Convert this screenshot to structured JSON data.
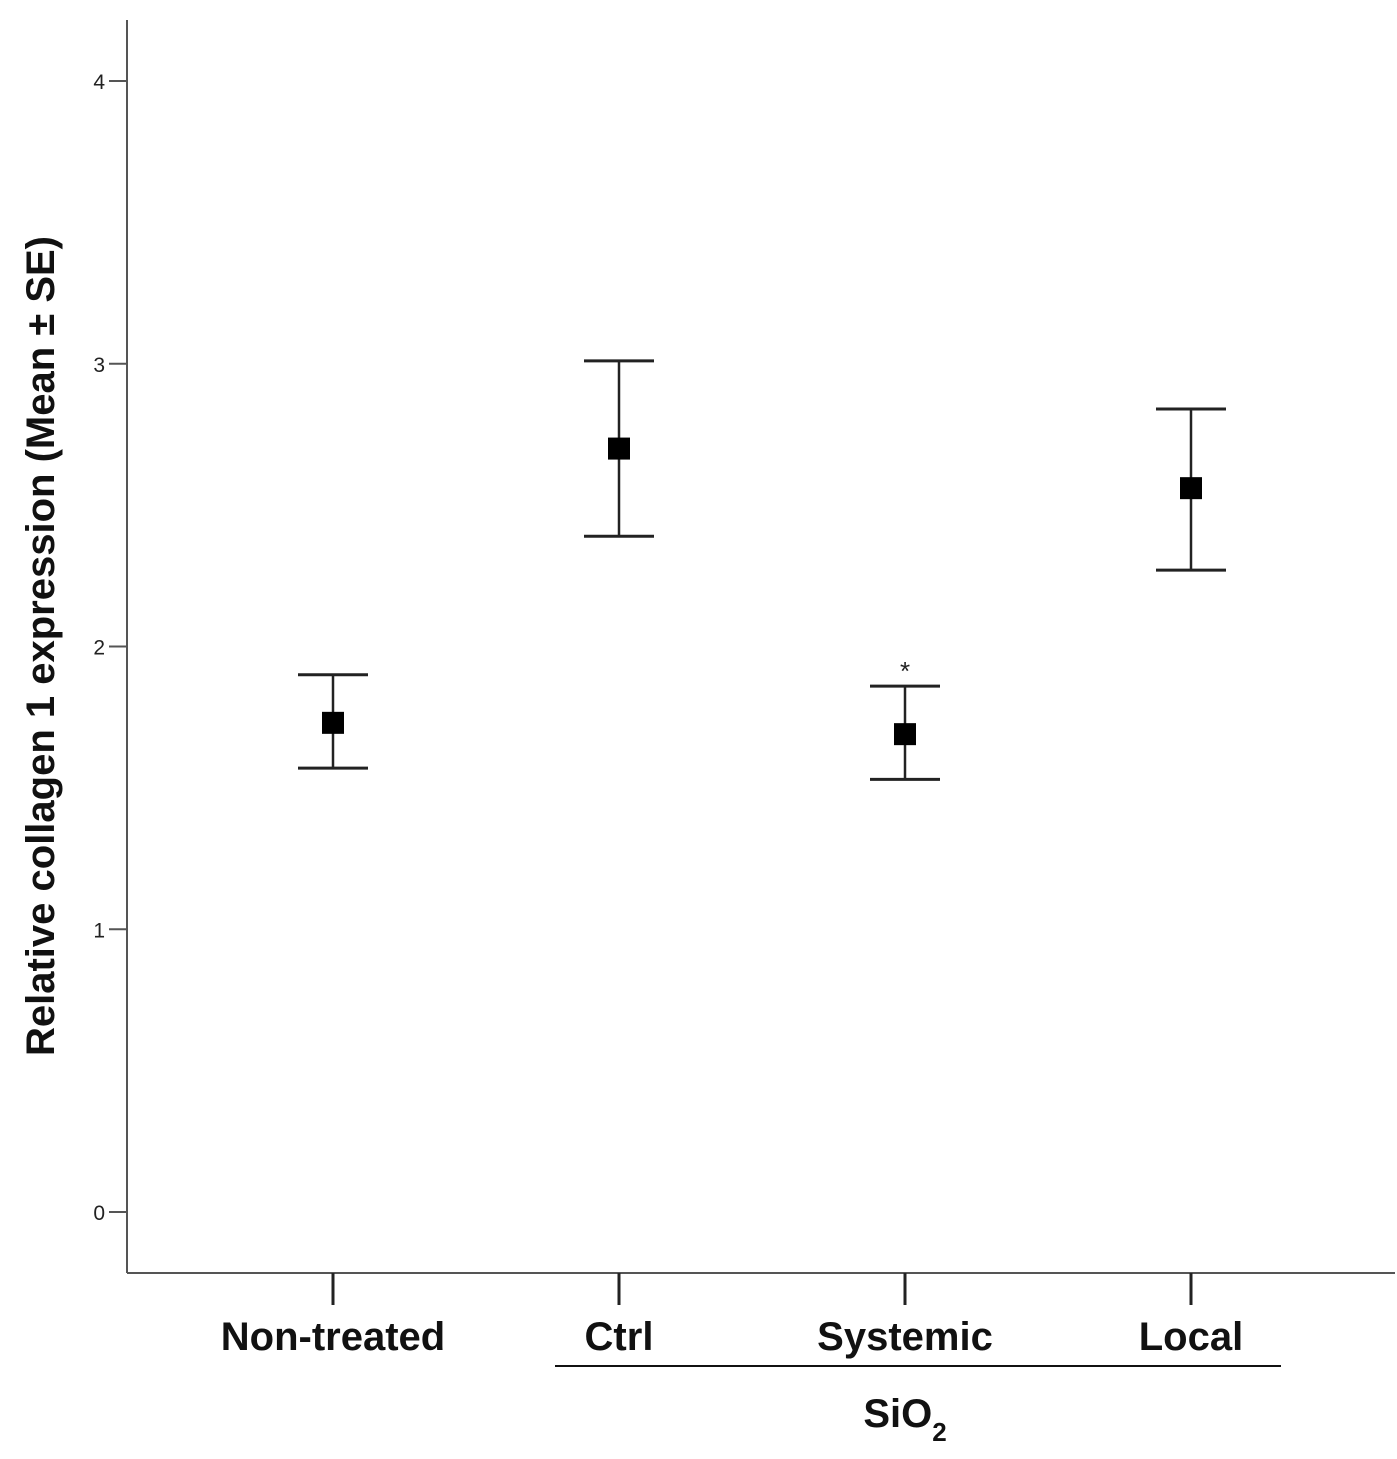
{
  "chart_data": {
    "type": "scatter",
    "ylabel": "Relative collagen 1 expression (Mean ± SE)",
    "ylim": [
      0,
      4
    ],
    "yticks": [
      "0",
      "1",
      "2",
      "3",
      "4"
    ],
    "categories": [
      "Non-treated",
      "Ctrl",
      "Systemic",
      "Local"
    ],
    "series": [
      {
        "means": [
          1.73,
          2.7,
          1.69,
          2.56
        ],
        "se_upper": [
          1.9,
          3.01,
          1.86,
          2.84
        ],
        "se_lower": [
          1.57,
          2.39,
          1.53,
          2.27
        ]
      }
    ],
    "annotations": [
      {
        "category": "Systemic",
        "text": "*"
      }
    ],
    "group_bracket": {
      "categories": [
        "Ctrl",
        "Systemic",
        "Local"
      ],
      "label_main": "SiO",
      "label_sub": "2"
    },
    "grid": false,
    "marker": "square",
    "color": "#000000"
  }
}
